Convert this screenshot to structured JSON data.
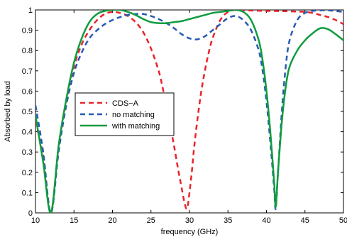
{
  "chart_data": {
    "type": "line",
    "title": "",
    "xlabel": "frequency (GHz)",
    "ylabel": "Absorbed by load",
    "xlim": [
      10,
      50
    ],
    "ylim": [
      0,
      1
    ],
    "x_ticks": [
      "10",
      "15",
      "20",
      "25",
      "30",
      "35",
      "40",
      "45",
      "50"
    ],
    "y_ticks": [
      "0",
      "0.1",
      "0.2",
      "0.3",
      "0.4",
      "0.5",
      "0.6",
      "0.7",
      "0.8",
      "0.9",
      "1"
    ],
    "grid": false,
    "legend_position": "center-left",
    "series": [
      {
        "name": "CDS−A",
        "color": "#e8242a",
        "dash": "dashed",
        "x": [
          10,
          11,
          12,
          13,
          14,
          15,
          16,
          17,
          18,
          19,
          20,
          21,
          22,
          23,
          24,
          25,
          26,
          26.5,
          27,
          27.5,
          28,
          28.5,
          29,
          29.3,
          29.6,
          29.8,
          30,
          30.3,
          30.6,
          31,
          31.5,
          32,
          32.5,
          33,
          34,
          35,
          36,
          37,
          38,
          39,
          40,
          41,
          42,
          43,
          44,
          45,
          46,
          47,
          48,
          49,
          50
        ],
        "y": [
          0.45,
          0.28,
          0.0,
          0.32,
          0.55,
          0.72,
          0.83,
          0.9,
          0.95,
          0.98,
          0.99,
          0.985,
          0.97,
          0.94,
          0.89,
          0.81,
          0.7,
          0.62,
          0.53,
          0.43,
          0.33,
          0.22,
          0.12,
          0.06,
          0.02,
          0.04,
          0.1,
          0.2,
          0.32,
          0.45,
          0.59,
          0.7,
          0.79,
          0.86,
          0.95,
          0.99,
          1.0,
          0.998,
          0.997,
          0.996,
          0.995,
          0.995,
          0.994,
          0.993,
          0.992,
          0.99,
          0.985,
          0.975,
          0.965,
          0.95,
          0.93
        ]
      },
      {
        "name": "no matching",
        "color": "#2659b6",
        "dash": "dashed",
        "x": [
          10,
          11,
          12,
          13,
          14,
          15,
          16,
          17,
          18,
          19,
          20,
          21,
          22,
          23,
          24,
          25,
          26,
          27,
          28,
          29,
          30,
          31,
          32,
          33,
          34,
          35,
          36,
          37,
          38,
          39,
          39.5,
          40,
          40.5,
          41,
          41.2,
          41.5,
          42,
          42.5,
          43,
          44,
          45,
          46,
          47,
          48,
          49,
          50
        ],
        "y": [
          0.53,
          0.3,
          0.0,
          0.3,
          0.53,
          0.69,
          0.79,
          0.86,
          0.9,
          0.93,
          0.95,
          0.965,
          0.975,
          0.98,
          0.98,
          0.97,
          0.955,
          0.935,
          0.91,
          0.88,
          0.86,
          0.855,
          0.87,
          0.9,
          0.93,
          0.96,
          0.97,
          0.95,
          0.9,
          0.8,
          0.7,
          0.55,
          0.35,
          0.12,
          0.02,
          0.2,
          0.5,
          0.72,
          0.85,
          0.95,
          0.985,
          0.995,
          0.998,
          0.998,
          0.995,
          0.99
        ]
      },
      {
        "name": "with matching",
        "color": "#0f9c3f",
        "dash": "solid",
        "x": [
          10,
          11,
          12,
          13,
          14,
          15,
          16,
          17,
          18,
          19,
          20,
          21,
          22,
          23,
          24,
          25,
          26,
          27,
          28,
          29,
          30,
          31,
          32,
          33,
          34,
          35,
          36,
          37,
          38,
          39,
          39.5,
          40,
          40.5,
          41,
          41.2,
          41.5,
          42,
          42.5,
          43,
          44,
          45,
          46,
          47,
          48,
          49,
          50
        ],
        "y": [
          0.48,
          0.25,
          0.0,
          0.33,
          0.56,
          0.74,
          0.86,
          0.94,
          0.98,
          0.995,
          1.0,
          1.0,
          0.99,
          0.975,
          0.955,
          0.94,
          0.935,
          0.935,
          0.94,
          0.945,
          0.955,
          0.965,
          0.975,
          0.985,
          0.99,
          0.995,
          1.0,
          0.99,
          0.95,
          0.85,
          0.75,
          0.6,
          0.4,
          0.15,
          0.03,
          0.2,
          0.45,
          0.62,
          0.72,
          0.8,
          0.85,
          0.885,
          0.91,
          0.905,
          0.88,
          0.85
        ]
      }
    ]
  }
}
